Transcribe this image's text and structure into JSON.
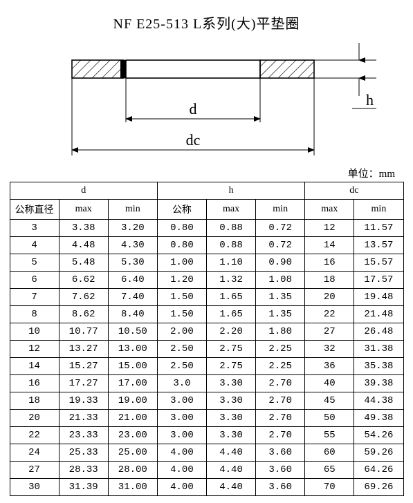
{
  "title": "NF E25-513 L系列(大)平垫圈",
  "unit_label": "单位：mm",
  "diagram": {
    "label_d": "d",
    "label_dc": "dc",
    "label_h": "h",
    "stroke": "#000000",
    "hatch_color": "#000000",
    "line_width_main": 1.6,
    "line_width_dim": 1,
    "font_size": 20,
    "font_family": "kaiti, serif"
  },
  "table": {
    "group_headers": [
      "d",
      "h",
      "dc"
    ],
    "sub_headers": {
      "nominal": "公称直径",
      "max": "max",
      "min": "min",
      "h_nominal": "公称"
    },
    "columns_struct": [
      {
        "key": "n",
        "group": "d",
        "label_key": "nominal"
      },
      {
        "key": "d_max",
        "group": "d",
        "label_key": "max"
      },
      {
        "key": "d_min",
        "group": "d",
        "label_key": "min"
      },
      {
        "key": "h_nom",
        "group": "h",
        "label_key": "h_nominal"
      },
      {
        "key": "h_max",
        "group": "h",
        "label_key": "max"
      },
      {
        "key": "h_min",
        "group": "h",
        "label_key": "min"
      },
      {
        "key": "dc_max",
        "group": "dc",
        "label_key": "max"
      },
      {
        "key": "dc_min",
        "group": "dc",
        "label_key": "min"
      }
    ],
    "rows": [
      {
        "n": "3",
        "d_max": "3.38",
        "d_min": "3.20",
        "h_nom": "0.80",
        "h_max": "0.88",
        "h_min": "0.72",
        "dc_max": "12",
        "dc_min": "11.57"
      },
      {
        "n": "4",
        "d_max": "4.48",
        "d_min": "4.30",
        "h_nom": "0.80",
        "h_max": "0.88",
        "h_min": "0.72",
        "dc_max": "14",
        "dc_min": "13.57"
      },
      {
        "n": "5",
        "d_max": "5.48",
        "d_min": "5.30",
        "h_nom": "1.00",
        "h_max": "1.10",
        "h_min": "0.90",
        "dc_max": "16",
        "dc_min": "15.57"
      },
      {
        "n": "6",
        "d_max": "6.62",
        "d_min": "6.40",
        "h_nom": "1.20",
        "h_max": "1.32",
        "h_min": "1.08",
        "dc_max": "18",
        "dc_min": "17.57"
      },
      {
        "n": "7",
        "d_max": "7.62",
        "d_min": "7.40",
        "h_nom": "1.50",
        "h_max": "1.65",
        "h_min": "1.35",
        "dc_max": "20",
        "dc_min": "19.48"
      },
      {
        "n": "8",
        "d_max": "8.62",
        "d_min": "8.40",
        "h_nom": "1.50",
        "h_max": "1.65",
        "h_min": "1.35",
        "dc_max": "22",
        "dc_min": "21.48"
      },
      {
        "n": "10",
        "d_max": "10.77",
        "d_min": "10.50",
        "h_nom": "2.00",
        "h_max": "2.20",
        "h_min": "1.80",
        "dc_max": "27",
        "dc_min": "26.48"
      },
      {
        "n": "12",
        "d_max": "13.27",
        "d_min": "13.00",
        "h_nom": "2.50",
        "h_max": "2.75",
        "h_min": "2.25",
        "dc_max": "32",
        "dc_min": "31.38"
      },
      {
        "n": "14",
        "d_max": "15.27",
        "d_min": "15.00",
        "h_nom": "2.50",
        "h_max": "2.75",
        "h_min": "2.25",
        "dc_max": "36",
        "dc_min": "35.38"
      },
      {
        "n": "16",
        "d_max": "17.27",
        "d_min": "17.00",
        "h_nom": "3.0",
        "h_max": "3.30",
        "h_min": "2.70",
        "dc_max": "40",
        "dc_min": "39.38"
      },
      {
        "n": "18",
        "d_max": "19.33",
        "d_min": "19.00",
        "h_nom": "3.00",
        "h_max": "3.30",
        "h_min": "2.70",
        "dc_max": "45",
        "dc_min": "44.38"
      },
      {
        "n": "20",
        "d_max": "21.33",
        "d_min": "21.00",
        "h_nom": "3.00",
        "h_max": "3.30",
        "h_min": "2.70",
        "dc_max": "50",
        "dc_min": "49.38"
      },
      {
        "n": "22",
        "d_max": "23.33",
        "d_min": "23.00",
        "h_nom": "3.00",
        "h_max": "3.30",
        "h_min": "2.70",
        "dc_max": "55",
        "dc_min": "54.26"
      },
      {
        "n": "24",
        "d_max": "25.33",
        "d_min": "25.00",
        "h_nom": "4.00",
        "h_max": "4.40",
        "h_min": "3.60",
        "dc_max": "60",
        "dc_min": "59.26"
      },
      {
        "n": "27",
        "d_max": "28.33",
        "d_min": "28.00",
        "h_nom": "4.00",
        "h_max": "4.40",
        "h_min": "3.60",
        "dc_max": "65",
        "dc_min": "64.26"
      },
      {
        "n": "30",
        "d_max": "31.39",
        "d_min": "31.00",
        "h_nom": "4.00",
        "h_max": "4.40",
        "h_min": "3.60",
        "dc_max": "70",
        "dc_min": "69.26"
      }
    ]
  }
}
